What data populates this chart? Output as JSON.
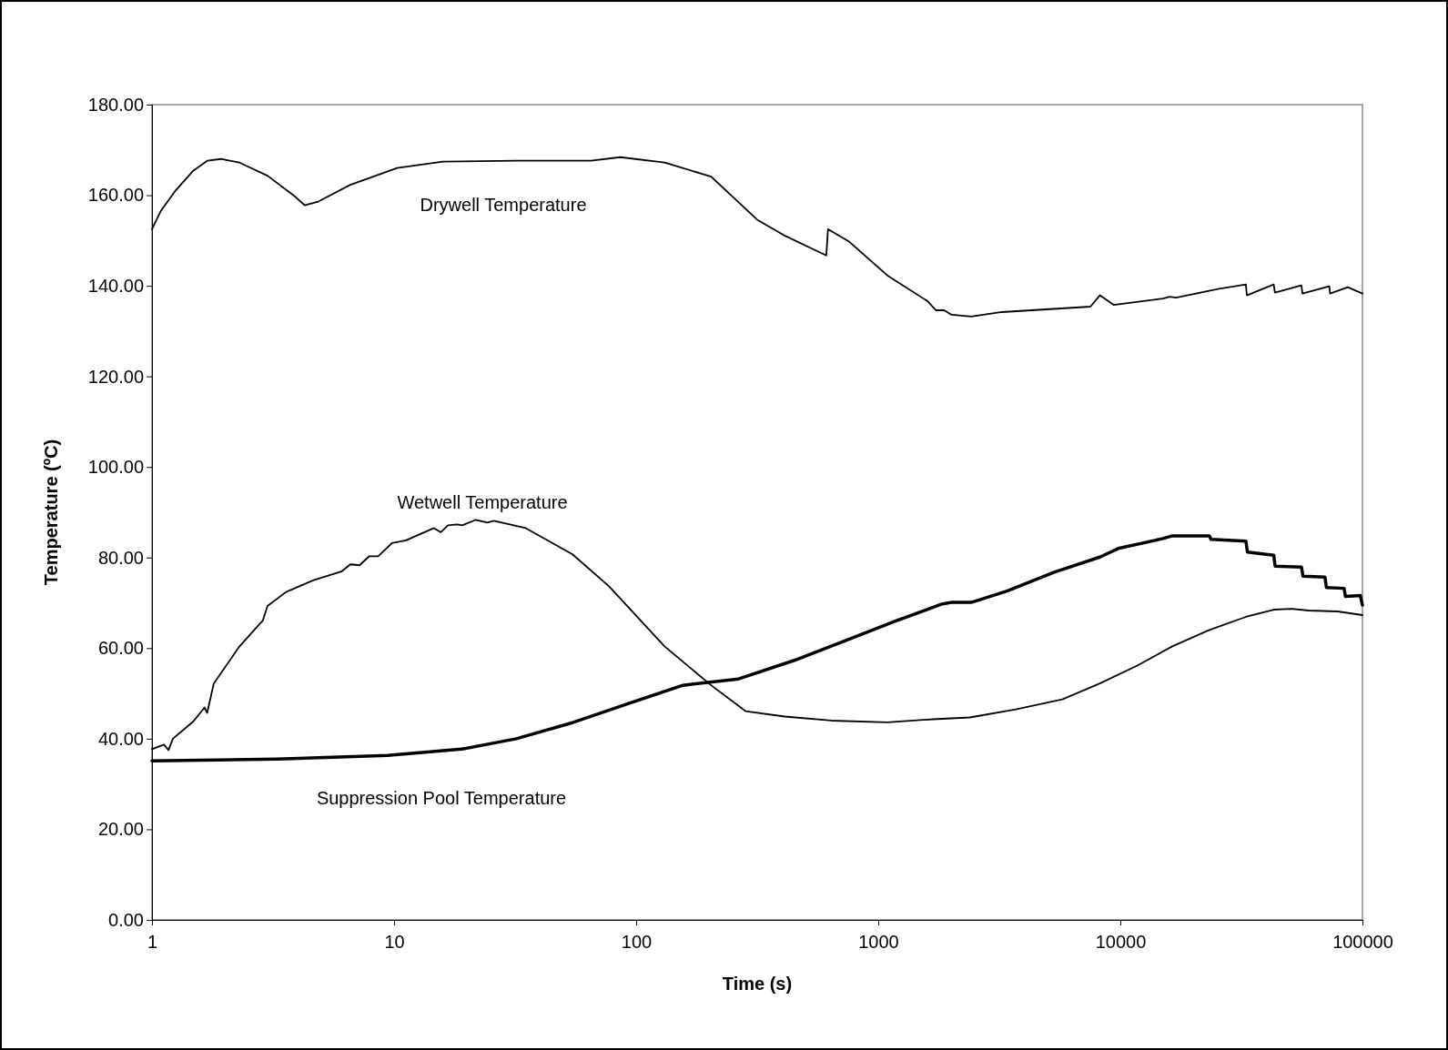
{
  "chart_data": {
    "type": "line",
    "xlabel": "Time (s)",
    "ylabel": "Temperature (ºC)",
    "log": "x",
    "grid": false,
    "line_style": "solid",
    "xlim": [
      1,
      100000
    ],
    "xticks": [
      1,
      10,
      100,
      1000,
      10000,
      100000
    ],
    "ylim": [
      0,
      180
    ],
    "yticks": [
      {
        "value": 0,
        "label": "0.00"
      },
      {
        "value": 20,
        "label": "20.00"
      },
      {
        "value": 40,
        "label": "40.00"
      },
      {
        "value": 60,
        "label": "60.00"
      },
      {
        "value": 80,
        "label": "80.00"
      },
      {
        "value": 100,
        "label": "100.00"
      },
      {
        "value": 120,
        "label": "120.00"
      },
      {
        "value": 140,
        "label": "140.00"
      },
      {
        "value": 160,
        "label": "160.00"
      },
      {
        "value": 180,
        "label": "180.00"
      }
    ],
    "series": [
      {
        "name": "Drywell Temperature",
        "color": "#000000",
        "x": [
          1,
          1.09,
          1.25,
          1.48,
          1.69,
          1.93,
          2.3,
          3.0,
          3.9,
          4.27,
          4.86,
          6.6,
          10.3,
          15.9,
          32,
          65,
          86,
          131,
          204,
          316,
          410,
          610,
          620,
          760,
          1090,
          1600,
          1730,
          1870,
          2010,
          2420,
          3240,
          7520,
          8230,
          9380,
          15000,
          16000,
          17000,
          25300,
          33000,
          33300,
          43000,
          43500,
          56000,
          56500,
          73000,
          73500,
          87000,
          100000
        ],
        "values": [
          152.5,
          156.6,
          161,
          165.4,
          167.6,
          168,
          167.2,
          164.3,
          159.7,
          157.8,
          158.6,
          162.3,
          166,
          167.4,
          167.6,
          167.6,
          168.4,
          167.2,
          164.1,
          154.6,
          151.1,
          146.7,
          152.5,
          149.7,
          142.3,
          136.6,
          134.6,
          134.6,
          133.6,
          133.2,
          134.2,
          135.4,
          137.9,
          135.8,
          137.2,
          137.6,
          137.4,
          139.3,
          140.3,
          137.9,
          140.3,
          138.5,
          140.1,
          138.3,
          139.9,
          138.3,
          139.7,
          138.3
        ]
      },
      {
        "name": "Wetwell Temperature",
        "color": "#000000",
        "x": [
          1,
          1.12,
          1.17,
          1.22,
          1.48,
          1.65,
          1.69,
          1.8,
          2.3,
          2.87,
          3.0,
          3.58,
          4.65,
          6.06,
          6.6,
          7.2,
          7.9,
          8.6,
          9.8,
          11.2,
          14.6,
          15.6,
          16.7,
          18.2,
          19.1,
          21.7,
          24.3,
          25.8,
          35,
          54.6,
          77.4,
          131,
          204,
          283,
          410,
          640,
          1090,
          1680,
          2390,
          3700,
          5760,
          8230,
          11700,
          16400,
          23300,
          33000,
          43000,
          51000,
          60000,
          79000,
          100000
        ],
        "values": [
          37.7,
          38.7,
          37.5,
          40,
          43.8,
          46.9,
          45.7,
          52.2,
          60.4,
          66.1,
          69.3,
          72.4,
          75,
          76.9,
          78.5,
          78.3,
          80.3,
          80.3,
          83.2,
          83.8,
          86.5,
          85.6,
          87.1,
          87.3,
          87.1,
          88.3,
          87.7,
          88.1,
          86.5,
          80.7,
          73.6,
          60.4,
          51.8,
          46.1,
          44.9,
          44,
          43.6,
          44.3,
          44.7,
          46.5,
          48.7,
          52.2,
          56.1,
          60.4,
          64,
          66.9,
          68.5,
          68.7,
          68.3,
          68.1,
          67.3
        ]
      },
      {
        "name": "Suppression Pool Temperature",
        "color": "#000000",
        "x": [
          1,
          3.3,
          9.4,
          19,
          32,
          55,
          92,
          156,
          265,
          450,
          760,
          1170,
          1820,
          2010,
          2420,
          3400,
          5300,
          8230,
          9800,
          15000,
          16400,
          23300,
          23700,
          33000,
          33500,
          43000,
          43600,
          56000,
          56800,
          70000,
          71000,
          84000,
          85000,
          98000,
          100000
        ],
        "values": [
          35.1,
          35.5,
          36.3,
          37.7,
          40,
          43.6,
          47.7,
          51.8,
          53.2,
          57.3,
          62,
          65.9,
          69.7,
          70.1,
          70.1,
          72.6,
          76.7,
          80.1,
          82,
          84.2,
          84.8,
          84.8,
          84,
          83.6,
          81.2,
          80.5,
          78.1,
          77.9,
          75.9,
          75.7,
          73.4,
          73.2,
          71.4,
          71.6,
          69.5
        ]
      }
    ]
  }
}
